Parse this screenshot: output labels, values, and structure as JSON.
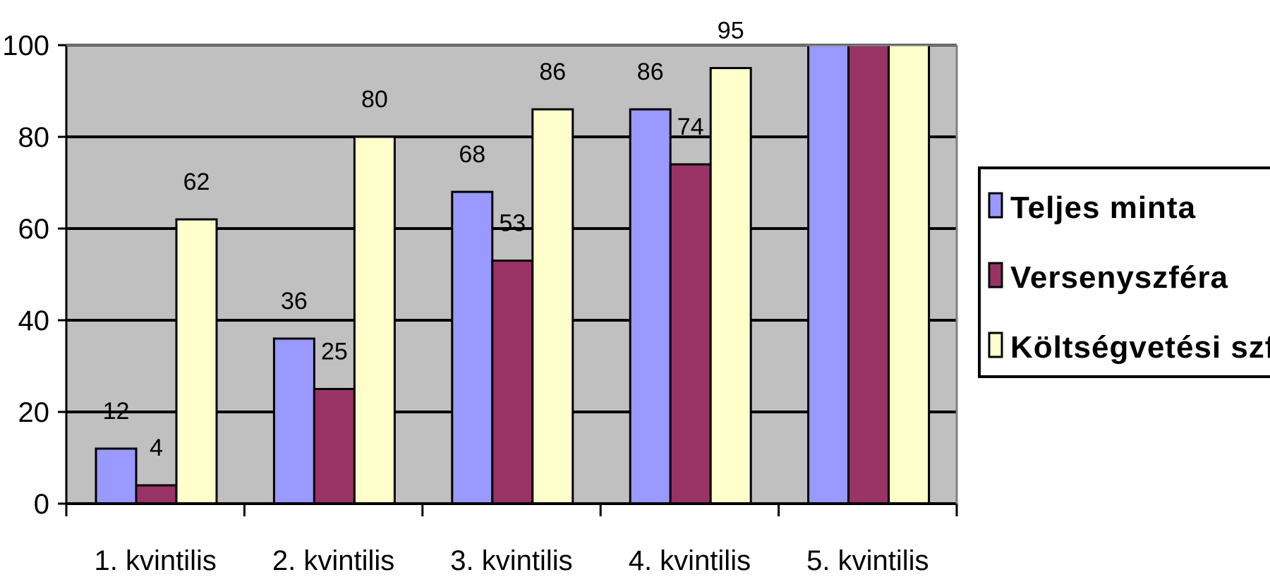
{
  "chart_data": {
    "type": "bar",
    "categories": [
      "1. kvintilis",
      "2. kvintilis",
      "3. kvintilis",
      "4. kvintilis",
      "5. kvintilis"
    ],
    "series": [
      {
        "name": "Teljes minta",
        "color": "#9999ff",
        "values": [
          12,
          36,
          68,
          86,
          100
        ],
        "labels": [
          "12",
          "36",
          "68",
          "86",
          ""
        ]
      },
      {
        "name": "Versenyszféra",
        "color": "#993366",
        "values": [
          4,
          25,
          53,
          74,
          100
        ],
        "labels": [
          "4",
          "25",
          "53",
          "74",
          ""
        ]
      },
      {
        "name": "Költségvetési szféra",
        "color": "#ffffcc",
        "values": [
          62,
          80,
          86,
          95,
          100
        ],
        "labels": [
          "62",
          "80",
          "86",
          "95",
          ""
        ]
      }
    ],
    "ylim": [
      0,
      100
    ],
    "yticks": [
      "0",
      "20",
      "40",
      "60",
      "80",
      "100"
    ],
    "grid": true,
    "legend": "right",
    "plot_background": "#c0c0c0"
  }
}
